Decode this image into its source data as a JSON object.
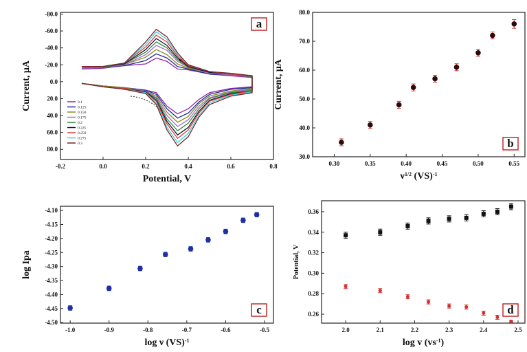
{
  "chart_data": [
    {
      "type": "line",
      "label": "a",
      "label_corner": "upper right",
      "y_inverted": true,
      "x_label": [
        {
          "text": "Potential, V"
        }
      ],
      "y_label": [
        {
          "text": "Current, μA"
        }
      ],
      "xlim": [
        -0.2,
        0.8
      ],
      "xticks": [
        {
          "value": -0.2,
          "label": "-0.2"
        },
        {
          "value": 0,
          "label": "0.0"
        },
        0.2,
        0.4,
        0.6,
        0.8
      ],
      "ylim": [
        -82,
        92
      ],
      "yticks": [
        {
          "value": -80,
          "label": "-80.0"
        },
        {
          "value": -60,
          "label": "-60.0"
        },
        {
          "value": -40,
          "label": "-40.0"
        },
        {
          "value": -20,
          "label": "-20.0"
        },
        {
          "value": 0,
          "label": "0.0"
        },
        {
          "value": 20,
          "label": "20.0"
        },
        {
          "value": 40,
          "label": "40.0"
        },
        {
          "value": 60,
          "label": "60.0"
        },
        {
          "value": 80,
          "label": "80.0"
        }
      ],
      "x": [
        -0.1,
        0,
        0.1,
        0.2,
        0.25,
        0.3,
        0.35,
        0.4,
        0.45,
        0.5,
        0.6,
        0.7,
        0.7,
        0.6,
        0.5,
        0.4,
        0.35,
        0.3,
        0.25,
        0.2,
        0.1,
        0,
        -0.1
      ],
      "series": [
        {
          "name": "0.1",
          "color": "#8e24aa",
          "values": [
            2,
            5,
            7,
            10,
            13,
            29,
            38,
            32,
            21,
            13,
            8,
            6,
            -5,
            -7,
            -9,
            -14,
            -15,
            -24,
            -28,
            -21,
            -19,
            -16,
            -15
          ]
        },
        {
          "name": "0.125",
          "color": "#1e2a9a",
          "values": [
            2,
            5,
            7,
            10,
            15,
            32,
            43,
            37,
            24,
            15,
            9,
            7,
            -6,
            -8,
            -9,
            -15,
            -18,
            -28,
            -33,
            -25,
            -19,
            -17,
            -16
          ]
        },
        {
          "name": "0.150",
          "color": "#8a8a1a",
          "values": [
            2,
            5,
            7,
            11,
            17,
            36,
            48,
            41,
            26,
            17,
            11,
            8,
            -6,
            -8,
            -10,
            -16,
            -21,
            -32,
            -38,
            -29,
            -20,
            -17,
            -16
          ]
        },
        {
          "name": "0.175",
          "color": "#a66bd0",
          "values": [
            2,
            6,
            8,
            11,
            19,
            40,
            53,
            45,
            29,
            19,
            12,
            9,
            -6,
            -8,
            -10,
            -17,
            -24,
            -37,
            -43,
            -32,
            -20,
            -17,
            -16
          ]
        },
        {
          "name": "0.2",
          "color": "#2e8b3a",
          "values": [
            2,
            6,
            8,
            12,
            20,
            44,
            58,
            49,
            32,
            20,
            13,
            10,
            -6,
            -9,
            -11,
            -17,
            -26,
            -40,
            -47,
            -35,
            -21,
            -17,
            -17
          ]
        },
        {
          "name": "0.225",
          "color": "#101830",
          "values": [
            2,
            6,
            8,
            12,
            22,
            47,
            63,
            54,
            35,
            22,
            14,
            11,
            -7,
            -9,
            -11,
            -18,
            -28,
            -43,
            -51,
            -38,
            -21,
            -18,
            -17
          ]
        },
        {
          "name": "0.250",
          "color": "#e53935",
          "values": [
            2,
            6,
            8,
            13,
            23,
            50,
            67,
            57,
            37,
            23,
            15,
            11,
            -7,
            -9,
            -12,
            -19,
            -30,
            -47,
            -55,
            -41,
            -22,
            -18,
            -17
          ]
        },
        {
          "name": "0.275",
          "color": "#3ad1e0",
          "values": [
            2,
            6,
            9,
            13,
            25,
            54,
            72,
            61,
            40,
            25,
            16,
            12,
            -7,
            -10,
            -12,
            -20,
            -32,
            -50,
            -59,
            -44,
            -22,
            -18,
            -18
          ]
        },
        {
          "name": "0.3",
          "color": "#7a2424",
          "values": [
            2,
            6,
            9,
            14,
            27,
            57,
            76,
            65,
            42,
            27,
            17,
            13,
            -7,
            -10,
            -12,
            -20,
            -34,
            -53,
            -62,
            -47,
            -22,
            -18,
            -18
          ]
        }
      ]
    },
    {
      "type": "scatter",
      "label": "b",
      "label_corner": "lower right",
      "x_label": [
        {
          "text": "ν"
        },
        {
          "text": "1/2",
          "sup": true
        },
        {
          "text": " (VS)"
        },
        {
          "text": "-1",
          "sup": true
        }
      ],
      "y_label": [
        {
          "text": "Current, μA"
        }
      ],
      "xlim": [
        0.27,
        0.565
      ],
      "xticks": [
        {
          "value": 0.3,
          "label": "0.30"
        },
        0.35,
        {
          "value": 0.4,
          "label": "0.40"
        },
        0.45,
        {
          "value": 0.5,
          "label": "0.50"
        },
        0.55
      ],
      "ylim": [
        30,
        80
      ],
      "yticks": [
        {
          "value": 30,
          "label": "30.0"
        },
        {
          "value": 40,
          "label": "40.0"
        },
        {
          "value": 50,
          "label": "50.0"
        },
        {
          "value": 60,
          "label": "60.0"
        },
        {
          "value": 70,
          "label": "70.0"
        },
        {
          "value": 80,
          "label": "80.0"
        }
      ],
      "x": [
        0.31,
        0.35,
        0.39,
        0.41,
        0.44,
        0.47,
        0.5,
        0.52,
        0.55
      ],
      "series": [
        {
          "color": "#2a0a0a",
          "error_color": "#d32f2f",
          "marker": "circle",
          "values": [
            35,
            41,
            48,
            54,
            57,
            61,
            66,
            72,
            76
          ],
          "errors": [
            1.2,
            1.2,
            1.2,
            1.2,
            1.2,
            1.2,
            1.2,
            1.2,
            1.5
          ]
        }
      ]
    },
    {
      "type": "scatter",
      "label": "c",
      "label_corner": "lower right",
      "x_label": [
        {
          "text": "log ν (VS)"
        },
        {
          "text": "-1",
          "sup": true
        }
      ],
      "y_label": [
        {
          "text": "log Ipa"
        }
      ],
      "xlim": [
        -1.025,
        -0.477
      ],
      "xticks": [
        {
          "value": -1.0,
          "label": "-1.0"
        },
        -0.9,
        -0.8,
        -0.7,
        -0.6,
        -0.5
      ],
      "ylim": [
        -4.502,
        -4.085
      ],
      "yticks": [
        {
          "value": -4.5,
          "label": "-4.50"
        },
        -4.45,
        {
          "value": -4.4,
          "label": "-4.40"
        },
        -4.35,
        {
          "value": -4.3,
          "label": "-4.30"
        },
        -4.25,
        {
          "value": -4.2,
          "label": "-4.20"
        },
        -4.15,
        {
          "value": -4.1,
          "label": "-4.10"
        }
      ],
      "x": [
        -1.0,
        -0.9,
        -0.82,
        -0.755,
        -0.69,
        -0.645,
        -0.6,
        -0.555,
        -0.52
      ],
      "series": [
        {
          "color": "#1f2fa8",
          "error_color": "#1f2fa8",
          "marker": "circle",
          "values": [
            -4.448,
            -4.378,
            -4.307,
            -4.257,
            -4.237,
            -4.205,
            -4.175,
            -4.135,
            -4.115
          ],
          "errors": [
            0.008,
            0.008,
            0.008,
            0.008,
            0.008,
            0.008,
            0.008,
            0.008,
            0.008
          ]
        }
      ]
    },
    {
      "type": "scatter",
      "label": "d",
      "label_corner": "lower right",
      "x_label": [
        {
          "text": "log v (vs"
        },
        {
          "text": "-1",
          "sup": true
        },
        {
          "text": ")"
        }
      ],
      "y_label": [
        {
          "text": "Potential, V"
        }
      ],
      "xlim": [
        1.93,
        2.52
      ],
      "xticks": [
        {
          "value": 2.0,
          "label": "2.0"
        },
        2.1,
        2.2,
        2.3,
        2.4,
        2.5
      ],
      "ylim": [
        0.2513,
        0.3707
      ],
      "yticks": [
        0.26,
        0.28,
        {
          "value": 0.3,
          "label": "0.30"
        },
        0.32,
        0.34,
        0.36
      ],
      "x": [
        2.0,
        2.1,
        2.18,
        2.24,
        2.3,
        2.35,
        2.4,
        2.44,
        2.48
      ],
      "series": [
        {
          "color": "#111111",
          "error_color": "#111111",
          "marker": "square",
          "values": [
            0.337,
            0.34,
            0.346,
            0.351,
            0.353,
            0.354,
            0.358,
            0.36,
            0.365
          ],
          "errors": [
            0.003,
            0.003,
            0.003,
            0.003,
            0.003,
            0.003,
            0.003,
            0.003,
            0.003
          ]
        },
        {
          "color": "#d32f2f",
          "error_color": "#d32f2f",
          "marker": "circle",
          "values": [
            0.287,
            0.283,
            0.277,
            0.272,
            0.268,
            0.267,
            0.261,
            0.257,
            0.253
          ],
          "errors": [
            0.002,
            0.002,
            0.002,
            0.002,
            0.002,
            0.002,
            0.002,
            0.002,
            0.001
          ]
        }
      ]
    }
  ]
}
